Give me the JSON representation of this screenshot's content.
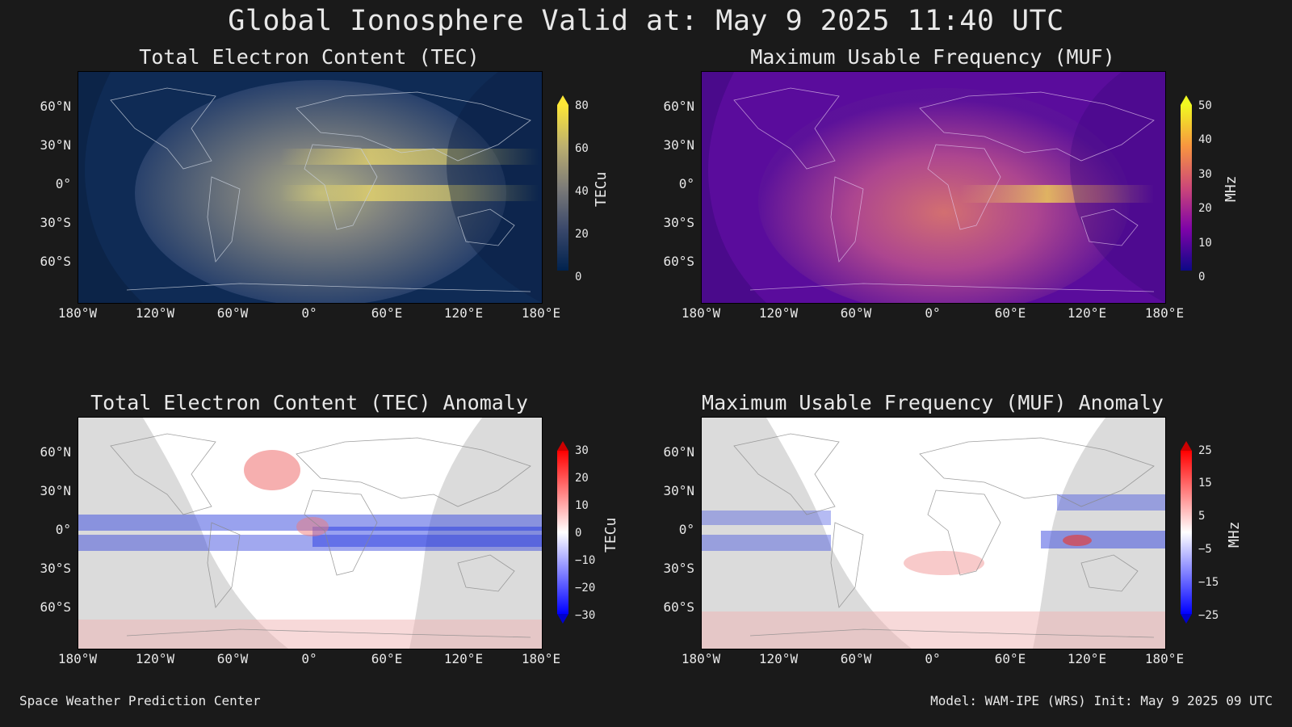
{
  "title": "Global Ionosphere Valid at: May 9 2025 11:40 UTC",
  "footer_left": "Space Weather Prediction Center",
  "footer_right": "Model: WAM-IPE (WRS) Init: May 9 2025 09 UTC",
  "lat_ticks": [
    "60°N",
    "30°N",
    "0°",
    "30°S",
    "60°S"
  ],
  "lon_ticks": [
    "180°W",
    "120°W",
    "60°W",
    "0°",
    "60°E",
    "120°E",
    "180°E"
  ],
  "chart_data": [
    {
      "type": "heatmap",
      "title": "Total Electron Content (TEC)",
      "colorbar_label": "TECu",
      "colorbar_ticks": [
        "80",
        "60",
        "40",
        "20",
        "0"
      ],
      "colorbar_range": [
        0,
        80
      ],
      "colormap": "cividis"
    },
    {
      "type": "heatmap",
      "title": "Maximum Usable Frequency (MUF)",
      "colorbar_label": "MHz",
      "colorbar_ticks": [
        "50",
        "40",
        "30",
        "20",
        "10",
        "0"
      ],
      "colorbar_range": [
        0,
        50
      ],
      "colormap": "plasma"
    },
    {
      "type": "heatmap",
      "title": "Total Electron Content (TEC) Anomaly",
      "colorbar_label": "TECu",
      "colorbar_ticks": [
        "30",
        "20",
        "10",
        "0",
        "−10",
        "−20",
        "−30"
      ],
      "colorbar_range": [
        -30,
        30
      ],
      "colormap": "bwr"
    },
    {
      "type": "heatmap",
      "title": "Maximum Usable Frequency (MUF) Anomaly",
      "colorbar_label": "MHz",
      "colorbar_ticks": [
        "25",
        "15",
        "5",
        "−5",
        "−15",
        "−25"
      ],
      "colorbar_range": [
        -25,
        25
      ],
      "colormap": "bwr"
    }
  ]
}
